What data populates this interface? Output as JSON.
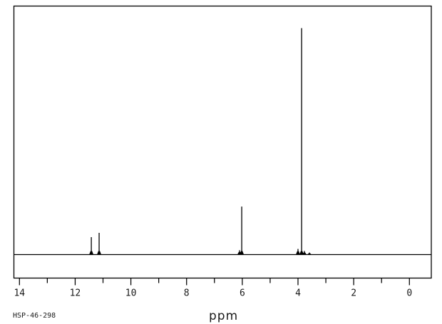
{
  "colors": {
    "line": "#000000",
    "background": "#ffffff"
  },
  "footer": {
    "sample_id": "HSP-46-298",
    "axis_label": "ppm"
  },
  "chart_data": {
    "type": "line",
    "subtype": "1H-NMR-spectrum",
    "title": "",
    "xlabel": "ppm",
    "ylabel": "",
    "x_axis": {
      "min": -0.8,
      "max": 14.2,
      "reversed": true,
      "unit": "ppm",
      "major_ticks": [
        14,
        12,
        10,
        8,
        6,
        4,
        2,
        0
      ],
      "major_tick_labels": [
        "14",
        "12",
        "10",
        "8",
        "6",
        "4",
        "2",
        "0"
      ],
      "minor_ticks": [
        13,
        11,
        9,
        7,
        5,
        3,
        1
      ]
    },
    "grid": false,
    "legend": false,
    "baseline_intensity": 0,
    "peaks": [
      {
        "ppm": 11.42,
        "intensity": 0.077
      },
      {
        "ppm": 11.14,
        "intensity": 0.096
      },
      {
        "ppm": 6.1,
        "intensity": 0.019
      },
      {
        "ppm": 6.02,
        "intensity": 0.212
      },
      {
        "ppm": 4.0,
        "intensity": 0.025
      },
      {
        "ppm": 3.87,
        "intensity": 1.0
      },
      {
        "ppm": 3.77,
        "intensity": 0.016
      },
      {
        "ppm": 3.59,
        "intensity": 0.009
      }
    ],
    "annotations": [
      "HSP-46-298"
    ]
  }
}
